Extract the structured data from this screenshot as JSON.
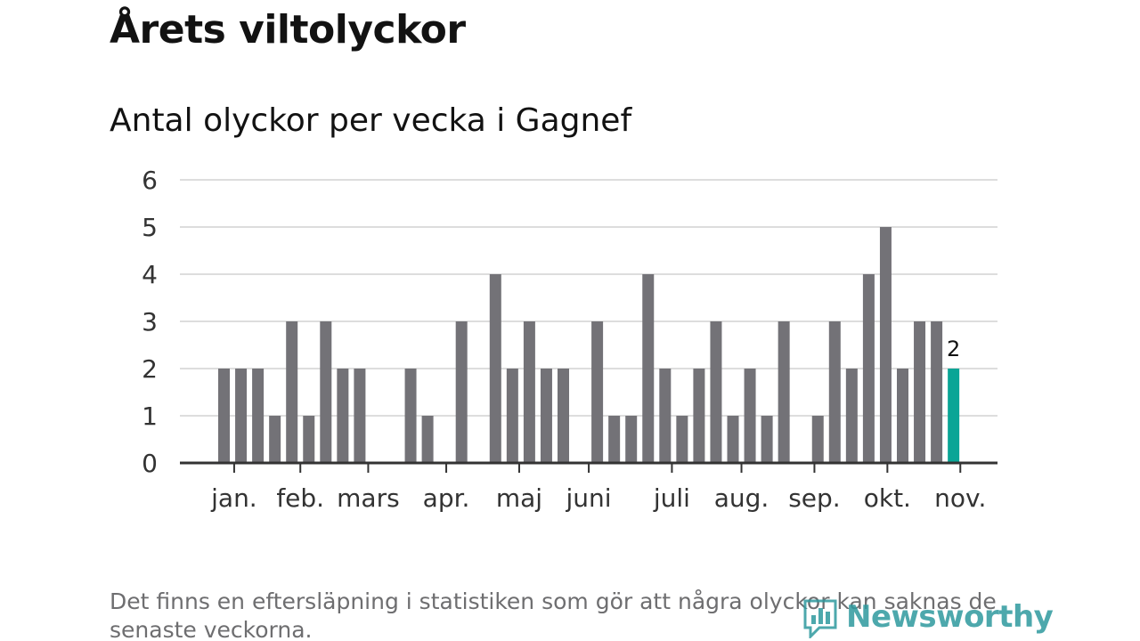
{
  "header": {
    "title": "Årets viltolyckor",
    "subtitle": "Antal olyckor per vecka i Gagnef"
  },
  "footnote": "Det finns en eftersläpning i statistiken som gör att några olyckor kan saknas de senaste veckorna.",
  "logo": {
    "text": "Newsworthy",
    "icon": "bar-chart-speech-bubble-icon"
  },
  "colors": {
    "bar": "#737277",
    "highlight": "#0aa596",
    "grid": "#dddddd",
    "axis": "#333333",
    "brand": "#2f9a9e"
  },
  "chart_data": {
    "type": "bar",
    "title": "Antal olyckor per vecka i Gagnef",
    "xlabel": "",
    "ylabel": "",
    "ylim": [
      0,
      6
    ],
    "yticks": [
      0,
      1,
      2,
      3,
      4,
      5,
      6
    ],
    "grid": true,
    "x_unit": "week",
    "values": [
      null,
      null,
      2,
      2,
      2,
      1,
      3,
      1,
      3,
      2,
      2,
      null,
      null,
      2,
      1,
      null,
      3,
      null,
      4,
      2,
      3,
      2,
      2,
      null,
      3,
      1,
      1,
      4,
      2,
      1,
      2,
      3,
      1,
      2,
      1,
      3,
      null,
      1,
      3,
      2,
      4,
      5,
      2,
      3,
      3,
      2
    ],
    "month_ticks": [
      {
        "label": "jan.",
        "week": 2.6
      },
      {
        "label": "feb.",
        "week": 6.5
      },
      {
        "label": "mars",
        "week": 10.5
      },
      {
        "label": "apr.",
        "week": 15.1
      },
      {
        "label": "maj",
        "week": 19.4
      },
      {
        "label": "juni",
        "week": 23.5
      },
      {
        "label": "juli",
        "week": 28.4
      },
      {
        "label": "aug.",
        "week": 32.5
      },
      {
        "label": "sep.",
        "week": 36.8
      },
      {
        "label": "okt.",
        "week": 41.1
      },
      {
        "label": "nov.",
        "week": 45.4
      }
    ],
    "highlight": {
      "index": 45,
      "label": "2"
    }
  }
}
